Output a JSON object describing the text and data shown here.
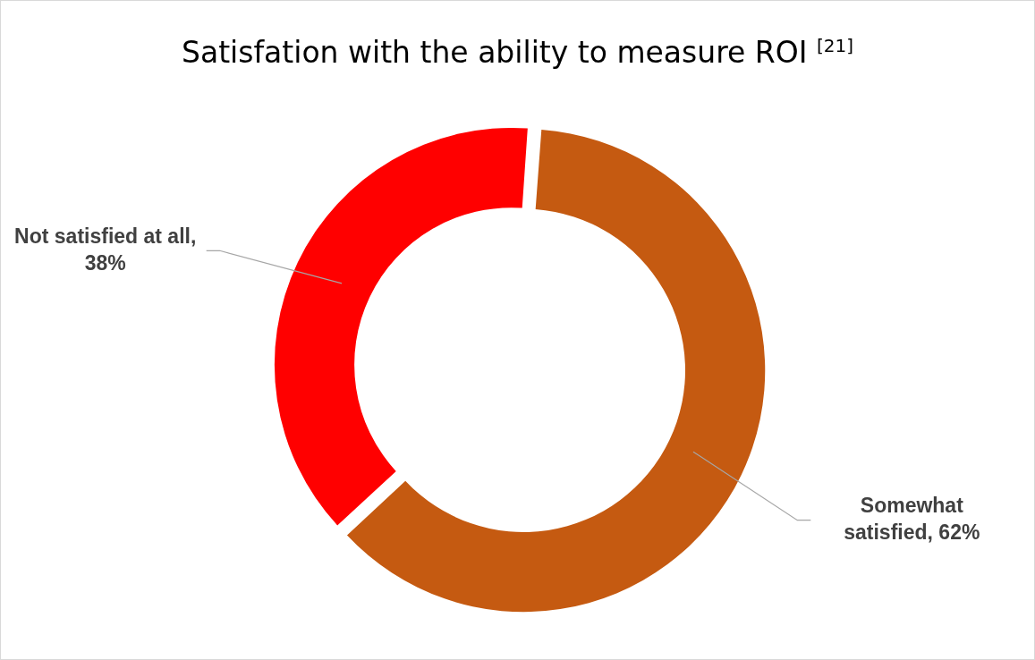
{
  "chart_data": {
    "type": "donut",
    "title": "Satisfation with the ability to measure ROI $^{[21]}$",
    "categories": [
      "Somewhat satisfied",
      "Not satisfied at all"
    ],
    "values": [
      62,
      38
    ],
    "colors": [
      "#c55a11",
      "#ff0000"
    ],
    "value_labels": [
      ", 62%",
      ", 38%"
    ],
    "legend": false
  }
}
